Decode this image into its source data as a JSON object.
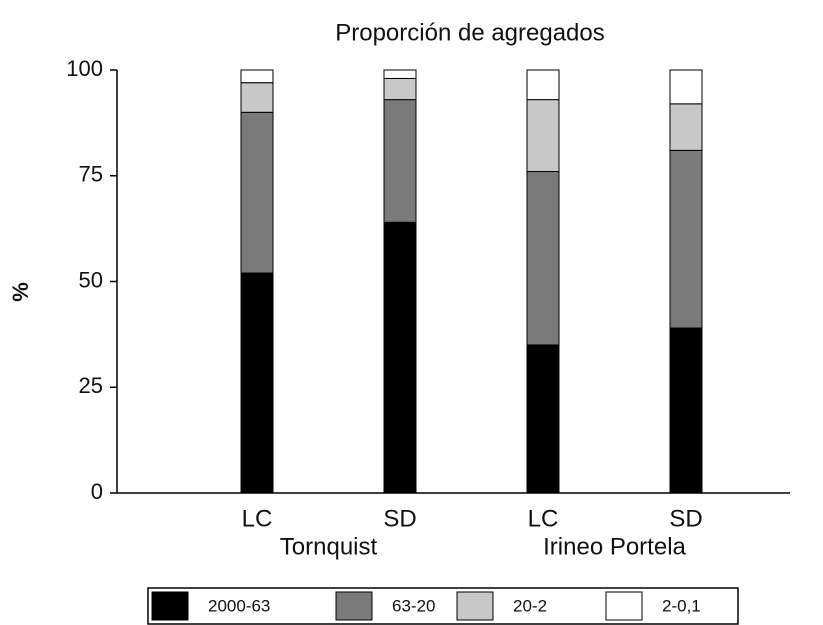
{
  "chart_data": {
    "type": "stacked_bar",
    "title": "Proporción de agregados",
    "ylabel": "%",
    "categories": [
      "LC",
      "SD",
      "LC",
      "SD"
    ],
    "group_labels": [
      "Tornquist",
      "Irineo Portela"
    ],
    "series": [
      {
        "name": "2000-63",
        "color": "#000000",
        "values": [
          52,
          64,
          35,
          39
        ]
      },
      {
        "name": "63-20",
        "color": "#7a7a7a",
        "values": [
          38,
          29,
          41,
          42
        ]
      },
      {
        "name": "20-2",
        "color": "#c8c8c8",
        "values": [
          7,
          5,
          17,
          11
        ]
      },
      {
        "name": "2-0,1",
        "color": "#ffffff",
        "values": [
          3,
          2,
          7,
          8
        ]
      }
    ],
    "ylim": [
      0,
      100
    ],
    "yticks": [
      0,
      25,
      50,
      75,
      100
    ]
  }
}
